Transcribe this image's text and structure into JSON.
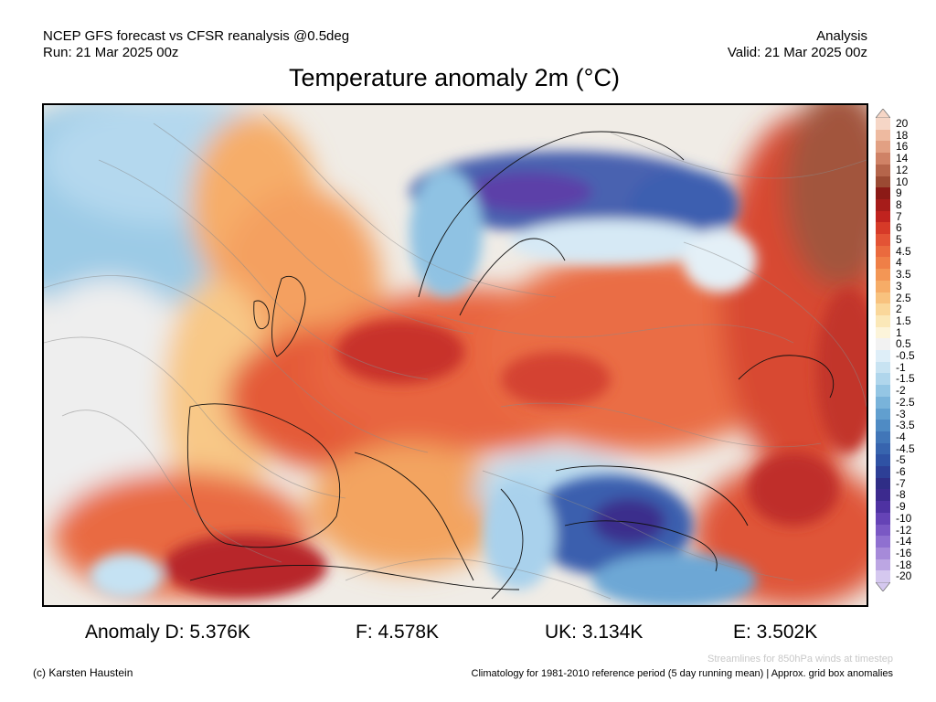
{
  "header": {
    "model_line": "NCEP GFS forecast vs CFSR reanalysis @0.5deg",
    "run_line": "Run: 21 Mar 2025 00z",
    "type_line": "Analysis",
    "valid_line": "Valid: 21 Mar 2025 00z"
  },
  "title": "Temperature anomaly 2m (°C)",
  "legend": {
    "labels": [
      "20",
      "18",
      "16",
      "14",
      "12",
      "10",
      "9",
      "8",
      "7",
      "6",
      "5",
      "4.5",
      "4",
      "3.5",
      "3",
      "2.5",
      "2",
      "1.5",
      "1",
      "0.5",
      "-0.5",
      "-1",
      "-1.5",
      "-2",
      "-2.5",
      "-3",
      "-3.5",
      "-4",
      "-4.5",
      "-5",
      "-6",
      "-7",
      "-8",
      "-9",
      "-10",
      "-12",
      "-14",
      "-16",
      "-18",
      "-20"
    ],
    "colors": [
      "#f6d6c6",
      "#eebaa0",
      "#e2a083",
      "#cf8266",
      "#b5654b",
      "#9b4a33",
      "#8b1a16",
      "#a61c1a",
      "#c0231f",
      "#d63a28",
      "#e35335",
      "#ea6a3e",
      "#ef7f47",
      "#f39655",
      "#f6ac67",
      "#f8c27e",
      "#fad79a",
      "#fbe8b8",
      "#fcf4da",
      "#f2f2f2",
      "#deeef8",
      "#c8e3f2",
      "#b0d6ec",
      "#94c6e4",
      "#79b3da",
      "#619fcf",
      "#4f8bc4",
      "#4176b8",
      "#3764ae",
      "#2f52a4",
      "#2d3f96",
      "#2f2d86",
      "#3c2a8e",
      "#4e32a2",
      "#6543b6",
      "#7a58c4",
      "#8f70d0",
      "#a68ad9",
      "#bca6e3",
      "#d5c8ef"
    ]
  },
  "anomalies": {
    "d": "Anomaly D: 5.376K",
    "f": "F: 4.578K",
    "uk": "UK: 3.134K",
    "e": "E: 3.502K"
  },
  "footer": {
    "credit": "(c) Karsten Haustein",
    "streamlines": "Streamlines for 850hPa winds at timestep",
    "climatology": "Climatology for 1981-2010 reference period (5 day running mean) | Approx. grid box anomalies"
  }
}
